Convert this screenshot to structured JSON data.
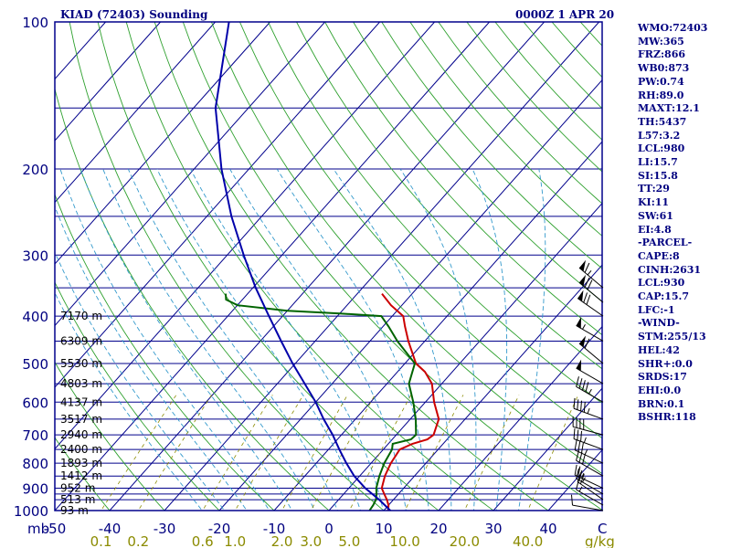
{
  "title_left": "KIAD (72403) Sounding",
  "title_right": "0000Z  1 APR 20",
  "units": {
    "pressure": "mb",
    "mixing_ratio": "g/kg",
    "temp_end": "C"
  },
  "indices": [
    "WMO:72403",
    "MW:365",
    "FRZ:866",
    "WB0:873",
    "PW:0.74",
    "RH:89.0",
    "MAXT:12.1",
    "TH:5437",
    "L57:3.2",
    "LCL:980",
    "LI:15.7",
    "SI:15.8",
    "TT:29",
    "KI:11",
    "SW:61",
    "EI:4.8",
    "-PARCEL-",
    "CAPE:8",
    "CINH:2631",
    "LCL:930",
    "CAP:15.7",
    "LFC:-1",
    "-WIND-",
    "STM:255/13",
    "HEL:42",
    "SHR+:0.0",
    "SRDS:17",
    "EHI:0.0",
    "BRN:0.1",
    "BSHR:118"
  ],
  "colors": {
    "frame": "#00008b",
    "isobar": "#00008b",
    "isotherm": "#00008b",
    "dry_adiabat": "#2ea02e",
    "moist_adiabat": "#3399cc",
    "mixing_ratio": "#8b8b00",
    "temperature": "#cc0000",
    "dewpoint": "#006400",
    "parcel": "#0000aa",
    "wind": "#000000"
  },
  "chart_data": {
    "type": "line",
    "diagram": "skew-T log-P",
    "xlabel": "",
    "ylabel": "",
    "pressure_ticks": [
      1000,
      900,
      800,
      700,
      600,
      500,
      400,
      300,
      200,
      100
    ],
    "pressure_lines": [
      1000,
      950,
      925,
      900,
      850,
      800,
      750,
      700,
      650,
      600,
      550,
      500,
      450,
      400,
      350,
      300,
      250,
      200,
      150
    ],
    "temp_ticks": [
      "-50",
      "-40",
      "-30",
      "-20",
      "-10",
      "0",
      "10",
      "20",
      "30",
      "40"
    ],
    "temp_range": [
      -50,
      50
    ],
    "pressure_range": [
      1000,
      100
    ],
    "mixing_ratio_labels": [
      "0.1",
      "0.2",
      "0.6",
      "1.0",
      "2.0",
      "3.0",
      "5.0",
      "10.0",
      "20.0",
      "40.0"
    ],
    "mixing_ratio_values": [
      0.1,
      0.2,
      0.6,
      1.0,
      2.0,
      3.0,
      5.0,
      10.0,
      20.0,
      40.0
    ],
    "height_labels": [
      {
        "pressure": 1000,
        "label": "93 m"
      },
      {
        "pressure": 950,
        "label": "513 m"
      },
      {
        "pressure": 900,
        "label": "952 m"
      },
      {
        "pressure": 850,
        "label": "1412 m"
      },
      {
        "pressure": 800,
        "label": "1893 m"
      },
      {
        "pressure": 750,
        "label": "2400 m"
      },
      {
        "pressure": 700,
        "label": "2940 m"
      },
      {
        "pressure": 650,
        "label": "3517 m"
      },
      {
        "pressure": 600,
        "label": "4137 m"
      },
      {
        "pressure": 550,
        "label": "4803 m"
      },
      {
        "pressure": 500,
        "label": "5530 m"
      },
      {
        "pressure": 450,
        "label": "6309 m"
      },
      {
        "pressure": 400,
        "label": "7170 m"
      }
    ],
    "series": [
      {
        "key": "temperature",
        "points": [
          [
            1000,
            10.8
          ],
          [
            975,
            10.0
          ],
          [
            950,
            8.8
          ],
          [
            925,
            7.4
          ],
          [
            900,
            6.0
          ],
          [
            850,
            4.6
          ],
          [
            800,
            3.6
          ],
          [
            750,
            3.0
          ],
          [
            730,
            4.4
          ],
          [
            715,
            6.4
          ],
          [
            700,
            6.8
          ],
          [
            650,
            5.2
          ],
          [
            600,
            1.6
          ],
          [
            550,
            -1.8
          ],
          [
            520,
            -5.0
          ],
          [
            500,
            -8.0
          ],
          [
            450,
            -13.0
          ],
          [
            420,
            -16.0
          ],
          [
            400,
            -18.0
          ],
          [
            380,
            -22.0
          ],
          [
            360,
            -25.5
          ]
        ]
      },
      {
        "key": "dewpoint",
        "points": [
          [
            1000,
            7.4
          ],
          [
            975,
            7.2
          ],
          [
            950,
            6.8
          ],
          [
            925,
            6.0
          ],
          [
            900,
            5.0
          ],
          [
            850,
            3.6
          ],
          [
            800,
            2.4
          ],
          [
            750,
            1.6
          ],
          [
            730,
            0.8
          ],
          [
            715,
            3.4
          ],
          [
            700,
            3.6
          ],
          [
            650,
            1.0
          ],
          [
            600,
            -2.2
          ],
          [
            550,
            -6.0
          ],
          [
            500,
            -8.2
          ],
          [
            450,
            -15.0
          ],
          [
            420,
            -19.0
          ],
          [
            400,
            -22.0
          ],
          [
            395,
            -30.0
          ],
          [
            390,
            -40.0
          ],
          [
            380,
            -50.0
          ],
          [
            370,
            -53.0
          ],
          [
            360,
            -54.0
          ]
        ]
      },
      {
        "key": "parcel",
        "points": [
          [
            1000,
            11.2
          ],
          [
            950,
            7.4
          ],
          [
            900,
            3.0
          ],
          [
            850,
            -1.0
          ],
          [
            800,
            -4.5
          ],
          [
            750,
            -8.0
          ],
          [
            700,
            -11.6
          ],
          [
            650,
            -15.8
          ],
          [
            600,
            -20.0
          ],
          [
            550,
            -25.0
          ],
          [
            500,
            -30.5
          ],
          [
            450,
            -36.2
          ],
          [
            400,
            -42.5
          ],
          [
            350,
            -49.5
          ],
          [
            300,
            -57.0
          ],
          [
            250,
            -65.5
          ],
          [
            200,
            -75.0
          ],
          [
            150,
            -86.0
          ],
          [
            100,
            -97.5
          ]
        ]
      }
    ],
    "wind_barbs": [
      {
        "pressure": 1000,
        "dir": 280,
        "speed": 10
      },
      {
        "pressure": 975,
        "dir": 300,
        "speed": 15
      },
      {
        "pressure": 950,
        "dir": 305,
        "speed": 20
      },
      {
        "pressure": 925,
        "dir": 300,
        "speed": 25
      },
      {
        "pressure": 900,
        "dir": 295,
        "speed": 25
      },
      {
        "pressure": 850,
        "dir": 300,
        "speed": 30
      },
      {
        "pressure": 800,
        "dir": 295,
        "speed": 35
      },
      {
        "pressure": 750,
        "dir": 290,
        "speed": 35
      },
      {
        "pressure": 700,
        "dir": 285,
        "speed": 40
      },
      {
        "pressure": 650,
        "dir": 290,
        "speed": 45
      },
      {
        "pressure": 600,
        "dir": 300,
        "speed": 45
      },
      {
        "pressure": 550,
        "dir": 300,
        "speed": 50
      },
      {
        "pressure": 500,
        "dir": 310,
        "speed": 60
      },
      {
        "pressure": 450,
        "dir": 300,
        "speed": 55
      },
      {
        "pressure": 400,
        "dir": 305,
        "speed": 70
      },
      {
        "pressure": 375,
        "dir": 310,
        "speed": 70
      },
      {
        "pressure": 350,
        "dir": 310,
        "speed": 65
      }
    ]
  }
}
